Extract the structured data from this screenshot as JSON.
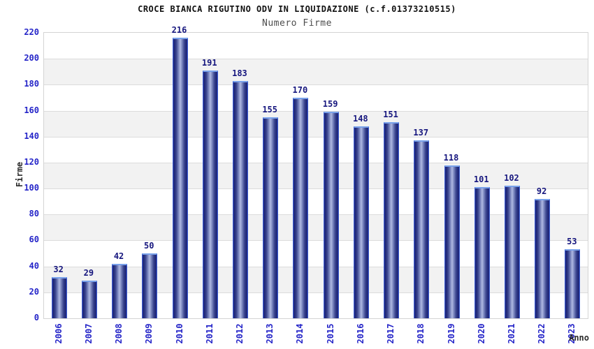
{
  "chart_data": {
    "type": "bar",
    "title": "CROCE BIANCA RIGUTINO ODV IN LIQUIDAZIONE (c.f.01373210515)",
    "subtitle": "Numero Firme",
    "xlabel": "Anno",
    "ylabel": "Firme",
    "categories": [
      "2006",
      "2007",
      "2008",
      "2009",
      "2010",
      "2011",
      "2012",
      "2013",
      "2014",
      "2015",
      "2016",
      "2017",
      "2018",
      "2019",
      "2020",
      "2021",
      "2022",
      "2023"
    ],
    "values": [
      32,
      29,
      42,
      50,
      216,
      191,
      183,
      155,
      170,
      159,
      148,
      151,
      137,
      118,
      101,
      102,
      92,
      53
    ],
    "ylim": [
      0,
      220
    ],
    "ytick_step": 20,
    "grid": true,
    "alternating_bands": true,
    "bar_value_labels_shown": true,
    "legend_position": "none"
  },
  "colors": {
    "title": "#111111",
    "subtitle": "#4d4d4d",
    "tick_label": "#2424c8",
    "bar_value_label": "#16167e",
    "axis_label": "#2b2b2b",
    "band_alt": "#f2f2f2",
    "grid_line": "#dcdcdc",
    "plot_border": "#d4d4d4",
    "bar_dark": "#232b86",
    "bar_light": "#b0b9e2",
    "bar_edge": "#3c5ed2",
    "bar_top_edge": "#79a1ea"
  }
}
